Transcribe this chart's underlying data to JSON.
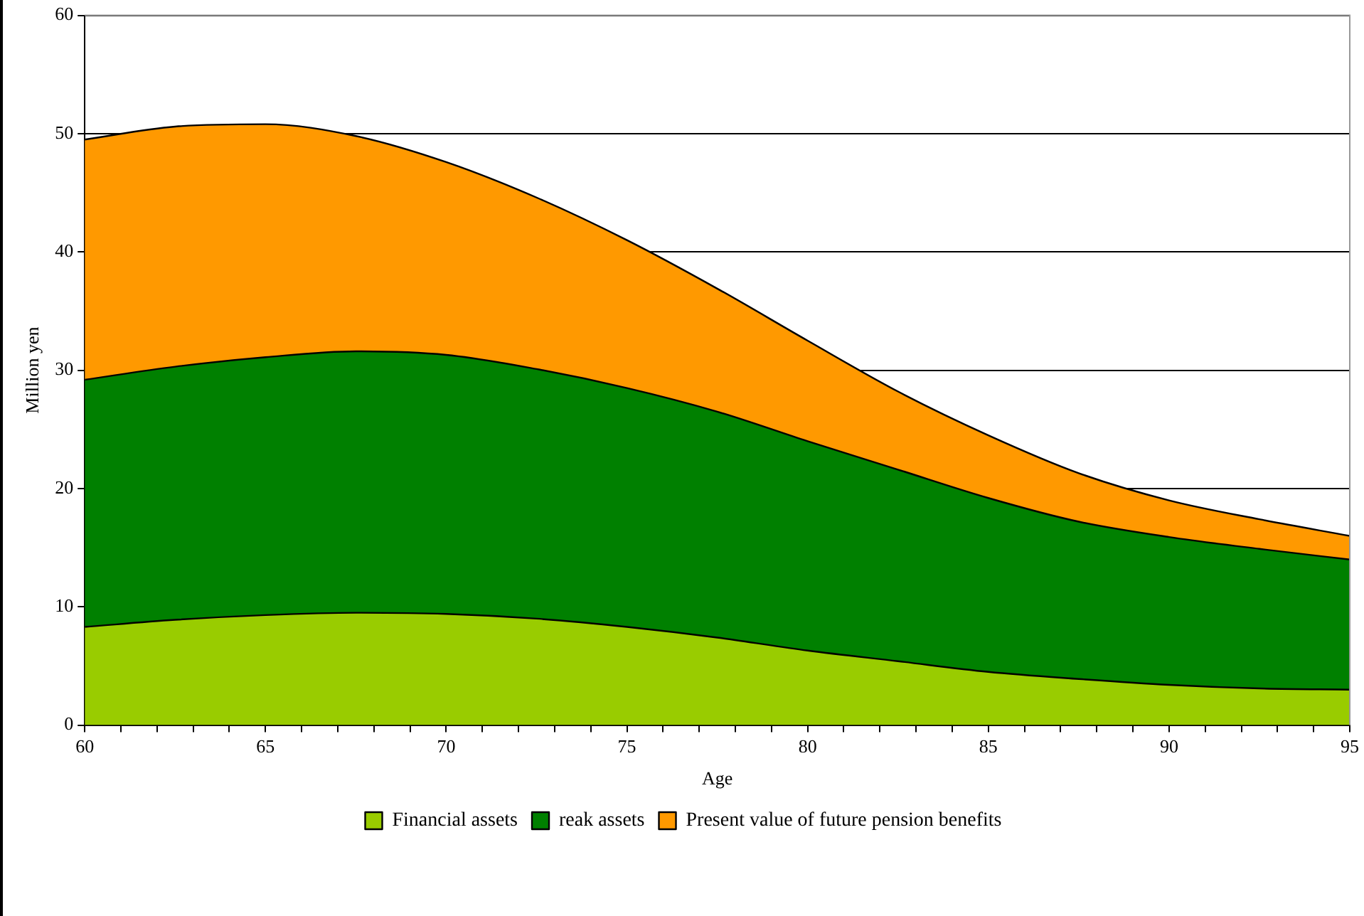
{
  "chart_data": {
    "type": "area",
    "stacked": true,
    "xlabel": "Age",
    "ylabel": "Million yen",
    "x": [
      60,
      62.5,
      65,
      67.5,
      70,
      72.5,
      75,
      77.5,
      80,
      82.5,
      85,
      87.5,
      90,
      92.5,
      95
    ],
    "series": [
      {
        "name": "Financial assets",
        "color": "#99cc00",
        "values": [
          8.3,
          8.9,
          9.3,
          9.5,
          9.4,
          9.0,
          8.3,
          7.4,
          6.3,
          5.4,
          4.5,
          3.9,
          3.4,
          3.1,
          3.0
        ]
      },
      {
        "name": "reak assets",
        "color": "#008000",
        "values": [
          20.9,
          21.4,
          21.8,
          22.1,
          21.9,
          21.1,
          20.2,
          19.1,
          17.7,
          16.2,
          14.7,
          13.3,
          12.5,
          11.8,
          11.0
        ]
      },
      {
        "name": "Present value of future pension benefits",
        "color": "#ff9900",
        "values": [
          20.3,
          20.3,
          19.7,
          18.2,
          16.3,
          14.5,
          12.5,
          10.4,
          8.5,
          6.6,
          5.3,
          4.1,
          3.1,
          2.5,
          2.0
        ]
      }
    ],
    "xlim": [
      60,
      95
    ],
    "xticks": [
      60,
      {
        "value": 61,
        "label": null
      },
      {
        "value": 62,
        "label": null
      },
      {
        "value": 63,
        "label": null
      },
      {
        "value": 64,
        "label": null
      },
      65,
      {
        "value": 66,
        "label": null
      },
      {
        "value": 67,
        "label": null
      },
      {
        "value": 68,
        "label": null
      },
      {
        "value": 69,
        "label": null
      },
      70,
      {
        "value": 71,
        "label": null
      },
      {
        "value": 72,
        "label": null
      },
      {
        "value": 73,
        "label": null
      },
      {
        "value": 74,
        "label": null
      },
      75,
      {
        "value": 76,
        "label": null
      },
      {
        "value": 77,
        "label": null
      },
      {
        "value": 78,
        "label": null
      },
      {
        "value": 79,
        "label": null
      },
      80,
      {
        "value": 81,
        "label": null
      },
      {
        "value": 82,
        "label": null
      },
      {
        "value": 83,
        "label": null
      },
      {
        "value": 84,
        "label": null
      },
      85,
      {
        "value": 86,
        "label": null
      },
      {
        "value": 87,
        "label": null
      },
      {
        "value": 88,
        "label": null
      },
      {
        "value": 89,
        "label": null
      },
      90,
      {
        "value": 91,
        "label": null
      },
      {
        "value": 92,
        "label": null
      },
      {
        "value": 93,
        "label": null
      },
      {
        "value": 94,
        "label": null
      },
      95
    ],
    "ylim": [
      0,
      60
    ],
    "yticks": [
      0,
      10,
      20,
      30,
      40,
      50,
      60
    ],
    "grid": "y",
    "legend": "bottom",
    "marker": "none"
  }
}
